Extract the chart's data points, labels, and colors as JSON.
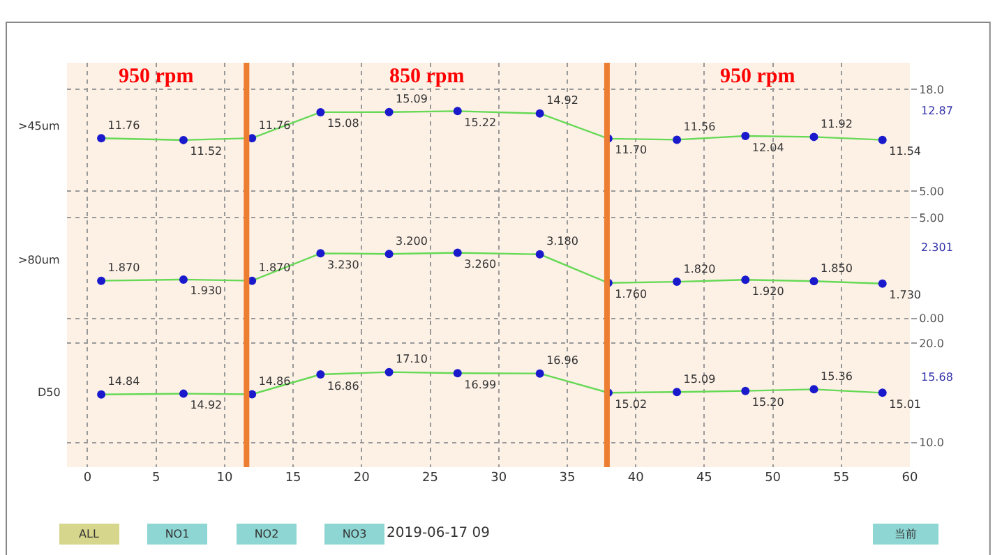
{
  "chart_data": [
    {
      "type": "line",
      "ylabel": ">45um",
      "x": [
        1,
        7,
        12,
        17,
        22,
        27,
        33,
        38,
        43,
        48,
        53,
        58
      ],
      "xlim": [
        -1.5,
        60
      ],
      "xticks": [
        0,
        5,
        10,
        15,
        20,
        25,
        30,
        35,
        40,
        45,
        50,
        55,
        60
      ],
      "ylim": [
        3.4,
        21.4
      ],
      "yticks": [
        {
          "value": 5,
          "label": "5.00"
        },
        {
          "value": 18,
          "label": "18.0"
        }
      ],
      "grid": true,
      "marker": "circle",
      "tick_labels": "y",
      "series": [
        {
          "color": "#66d955",
          "colors": [
            "#1a1acc",
            "#1a1acc",
            "#1a1acc",
            "#1a1acc",
            "#1a1acc",
            "#1a1acc",
            "#1a1acc",
            "#1a1acc",
            "#1a1acc",
            "#1a1acc",
            "#1a1acc",
            "#1a1acc"
          ],
          "values": [
            11.76,
            11.52,
            11.76,
            15.08,
            15.09,
            15.22,
            14.92,
            11.7,
            11.56,
            12.04,
            11.92,
            11.54
          ],
          "value_labels": [
            "11.76",
            "11.52",
            "11.76",
            "15.08",
            "15.09",
            "15.22",
            "14.92",
            "11.70",
            "11.56",
            "12.04",
            "11.92",
            "11.54"
          ]
        }
      ],
      "ref_lines": [
        {
          "axis": "x",
          "value": 11.6,
          "color": "#ed7d31"
        },
        {
          "axis": "x",
          "value": 37.9,
          "color": "#ed7d31"
        }
      ],
      "annotations": [
        "12.87",
        "950 rpm",
        "850 rpm",
        "950 rpm"
      ]
    },
    {
      "type": "line",
      "ylabel": ">80um",
      "x": [
        1,
        7,
        12,
        17,
        22,
        27,
        33,
        38,
        43,
        48,
        53,
        58
      ],
      "xlim": [
        -1.5,
        60
      ],
      "xticks": [
        0,
        5,
        10,
        15,
        20,
        25,
        30,
        35,
        40,
        45,
        50,
        55,
        60
      ],
      "ylim": [
        -0.6,
        5.7
      ],
      "yticks": [
        {
          "value": 0,
          "label": "0.00"
        },
        {
          "value": 5,
          "label": "5.00"
        }
      ],
      "grid": true,
      "marker": "circle",
      "tick_labels": "y",
      "series": [
        {
          "color": "#66d955",
          "colors": [
            "#1a1acc",
            "#1a1acc",
            "#1a1acc",
            "#1a1acc",
            "#1a1acc",
            "#1a1acc",
            "#1a1acc",
            "#1a1acc",
            "#1a1acc",
            "#1a1acc",
            "#1a1acc",
            "#1a1acc"
          ],
          "values": [
            1.87,
            1.93,
            1.87,
            3.23,
            3.2,
            3.26,
            3.18,
            1.76,
            1.82,
            1.92,
            1.85,
            1.73
          ],
          "value_labels": [
            "1.870",
            "1.930",
            "1.870",
            "3.230",
            "3.200",
            "3.260",
            "3.180",
            "1.760",
            "1.820",
            "1.920",
            "1.850",
            "1.730"
          ]
        }
      ],
      "ref_lines": [
        {
          "axis": "x",
          "value": 11.6,
          "color": "#ed7d31"
        },
        {
          "axis": "x",
          "value": 37.9,
          "color": "#ed7d31"
        }
      ],
      "annotations": [
        "2.301"
      ]
    },
    {
      "type": "line",
      "ylabel": "D50",
      "x": [
        1,
        7,
        12,
        17,
        22,
        27,
        33,
        38,
        43,
        48,
        53,
        58
      ],
      "xlim": [
        -1.5,
        60
      ],
      "xticks": [
        0,
        5,
        10,
        15,
        20,
        25,
        30,
        35,
        40,
        45,
        50,
        55,
        60
      ],
      "ylim": [
        7.5,
        21.3
      ],
      "yticks": [
        {
          "value": 10,
          "label": "10.0"
        },
        {
          "value": 20,
          "label": "20.0"
        }
      ],
      "grid": true,
      "marker": "circle",
      "series": [
        {
          "color": "#66d955",
          "colors": [
            "#1a1acc",
            "#1a1acc",
            "#1a1acc",
            "#1a1acc",
            "#1a1acc",
            "#1a1acc",
            "#1a1acc",
            "#1a1acc",
            "#1a1acc",
            "#1a1acc",
            "#1a1acc",
            "#1a1acc"
          ],
          "values": [
            14.84,
            14.92,
            14.86,
            16.86,
            17.1,
            16.99,
            16.96,
            15.02,
            15.09,
            15.2,
            15.36,
            15.01
          ],
          "value_labels": [
            "14.84",
            "14.92",
            "14.86",
            "16.86",
            "17.10",
            "16.99",
            "16.96",
            "15.02",
            "15.09",
            "15.20",
            "15.36",
            "15.01"
          ]
        }
      ],
      "ref_lines": [
        {
          "axis": "x",
          "value": 11.6,
          "color": "#ed7d31"
        },
        {
          "axis": "x",
          "value": 37.9,
          "color": "#ed7d31"
        }
      ],
      "annotations": [
        "15.68",
        "ALL",
        "NO1",
        "NO2",
        "NO3",
        "2019-06-17 09",
        "当前"
      ]
    }
  ]
}
